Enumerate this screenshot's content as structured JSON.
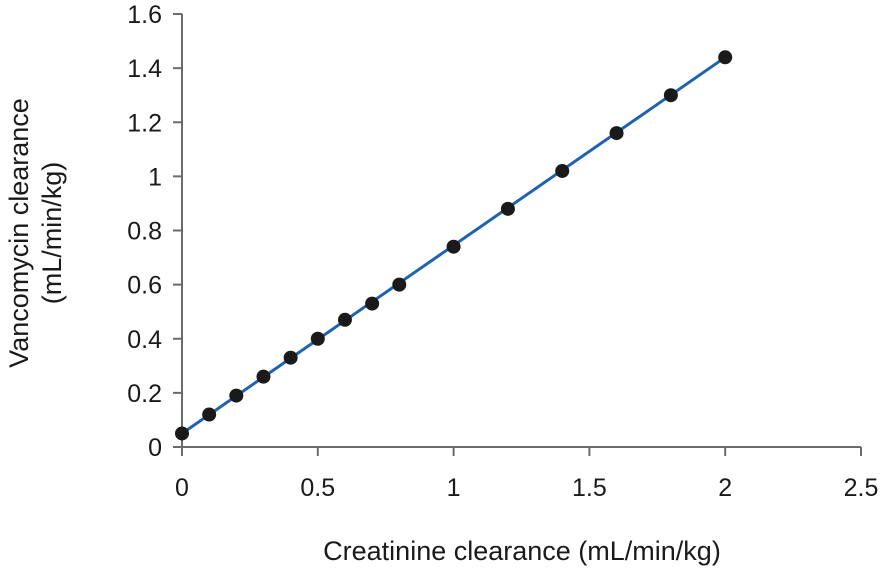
{
  "chart_data": {
    "type": "scatter",
    "title": "",
    "xlabel": "Creatinine clearance (mL/min/kg)",
    "ylabel_lines": [
      "Vancomycin clearance",
      "(mL/min/kg)"
    ],
    "xlim": [
      0,
      2.5
    ],
    "ylim": [
      0,
      1.6
    ],
    "x_ticks": [
      "0",
      "0.5",
      "1",
      "1.5",
      "2",
      "2.5"
    ],
    "y_ticks": [
      "0",
      "0.2",
      "0.4",
      "0.6",
      "0.8",
      "1",
      "1.2",
      "1.4",
      "1.6"
    ],
    "grid": false,
    "legend": "none",
    "series": [
      {
        "points": [
          {
            "x": 0,
            "y": 0.05
          },
          {
            "x": 0.1,
            "y": 0.12
          },
          {
            "x": 0.2,
            "y": 0.19
          },
          {
            "x": 0.3,
            "y": 0.26
          },
          {
            "x": 0.4,
            "y": 0.33
          },
          {
            "x": 0.5,
            "y": 0.4
          },
          {
            "x": 0.6,
            "y": 0.47
          },
          {
            "x": 0.7,
            "y": 0.53
          },
          {
            "x": 0.8,
            "y": 0.6
          },
          {
            "x": 1.0,
            "y": 0.74
          },
          {
            "x": 1.2,
            "y": 0.88
          },
          {
            "x": 1.4,
            "y": 1.02
          },
          {
            "x": 1.6,
            "y": 1.16
          },
          {
            "x": 1.8,
            "y": 1.3
          },
          {
            "x": 2.0,
            "y": 1.44
          }
        ],
        "marker_color": "#1a1a1a"
      }
    ],
    "fit_line": {
      "x": [
        0,
        2.0
      ],
      "y": [
        0.05,
        1.44
      ],
      "color": "#1f63b0"
    },
    "axis_color": "#6b6b6b"
  }
}
